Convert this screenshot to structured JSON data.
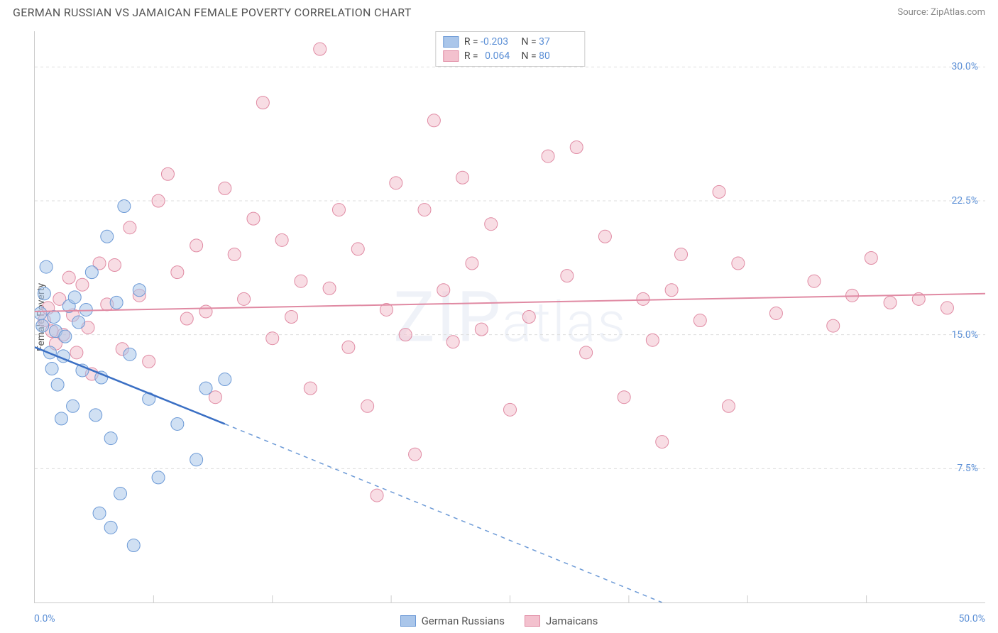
{
  "header": {
    "title": "GERMAN RUSSIAN VS JAMAICAN FEMALE POVERTY CORRELATION CHART",
    "source": "Source: ZipAtlas.com"
  },
  "chart": {
    "type": "scatter",
    "ylabel": "Female Poverty",
    "watermark": "ZIPatlas",
    "xlim": [
      0,
      50
    ],
    "ylim": [
      0,
      32
    ],
    "x_tick_labels": [
      "0.0%",
      "50.0%"
    ],
    "y_ticks": [
      {
        "v": 7.5,
        "label": "7.5%"
      },
      {
        "v": 15.0,
        "label": "15.0%"
      },
      {
        "v": 22.5,
        "label": "22.5%"
      },
      {
        "v": 30.0,
        "label": "30.0%"
      }
    ],
    "x_tick_count": 8,
    "background_color": "#ffffff",
    "grid_color": "#dddddd",
    "marker_radius": 9,
    "marker_opacity": 0.55,
    "trend_line_width": 2,
    "series": [
      {
        "id": "german_russians",
        "label": "German Russians",
        "color_fill": "#aac6ea",
        "color_stroke": "#6b99d6",
        "R": "-0.203",
        "N": "37",
        "trend": {
          "x1": 0,
          "y1": 14.3,
          "x2": 10,
          "y2": 10.0,
          "extrap_x2": 33,
          "extrap_y2": 0
        },
        "points": [
          [
            0.3,
            16.2
          ],
          [
            0.4,
            15.5
          ],
          [
            0.5,
            17.3
          ],
          [
            0.6,
            18.8
          ],
          [
            0.8,
            14.0
          ],
          [
            0.9,
            13.1
          ],
          [
            1.0,
            16.0
          ],
          [
            1.1,
            15.2
          ],
          [
            1.2,
            12.2
          ],
          [
            1.4,
            10.3
          ],
          [
            1.5,
            13.8
          ],
          [
            1.6,
            14.9
          ],
          [
            1.8,
            16.6
          ],
          [
            2.0,
            11.0
          ],
          [
            2.1,
            17.1
          ],
          [
            2.3,
            15.7
          ],
          [
            2.5,
            13.0
          ],
          [
            2.7,
            16.4
          ],
          [
            3.0,
            18.5
          ],
          [
            3.2,
            10.5
          ],
          [
            3.5,
            12.6
          ],
          [
            3.8,
            20.5
          ],
          [
            4.0,
            9.2
          ],
          [
            4.3,
            16.8
          ],
          [
            4.7,
            22.2
          ],
          [
            5.0,
            13.9
          ],
          [
            5.5,
            17.5
          ],
          [
            6.0,
            11.4
          ],
          [
            6.5,
            7.0
          ],
          [
            4.0,
            4.2
          ],
          [
            5.2,
            3.2
          ],
          [
            3.4,
            5.0
          ],
          [
            4.5,
            6.1
          ],
          [
            8.5,
            8.0
          ],
          [
            9.0,
            12.0
          ],
          [
            10.0,
            12.5
          ],
          [
            7.5,
            10.0
          ]
        ]
      },
      {
        "id": "jamaicans",
        "label": "Jamaicans",
        "color_fill": "#f3c1ce",
        "color_stroke": "#e08aa3",
        "R": "0.064",
        "N": "80",
        "trend": {
          "x1": 0,
          "y1": 16.3,
          "x2": 50,
          "y2": 17.3
        },
        "points": [
          [
            0.5,
            15.8
          ],
          [
            0.7,
            16.5
          ],
          [
            0.9,
            15.2
          ],
          [
            1.1,
            14.5
          ],
          [
            1.3,
            17.0
          ],
          [
            1.5,
            15.0
          ],
          [
            1.8,
            18.2
          ],
          [
            2.0,
            16.1
          ],
          [
            2.2,
            14.0
          ],
          [
            2.5,
            17.8
          ],
          [
            2.8,
            15.4
          ],
          [
            3.0,
            12.8
          ],
          [
            3.4,
            19.0
          ],
          [
            3.8,
            16.7
          ],
          [
            4.2,
            18.9
          ],
          [
            4.6,
            14.2
          ],
          [
            5.0,
            21.0
          ],
          [
            5.5,
            17.2
          ],
          [
            6.0,
            13.5
          ],
          [
            6.5,
            22.5
          ],
          [
            7.0,
            24.0
          ],
          [
            7.5,
            18.5
          ],
          [
            8.0,
            15.9
          ],
          [
            8.5,
            20.0
          ],
          [
            9.0,
            16.3
          ],
          [
            9.5,
            11.5
          ],
          [
            10.0,
            23.2
          ],
          [
            10.5,
            19.5
          ],
          [
            11.0,
            17.0
          ],
          [
            11.5,
            21.5
          ],
          [
            12.0,
            28.0
          ],
          [
            12.5,
            14.8
          ],
          [
            13.0,
            20.3
          ],
          [
            13.5,
            16.0
          ],
          [
            14.0,
            18.0
          ],
          [
            14.5,
            12.0
          ],
          [
            15.0,
            31.0
          ],
          [
            15.5,
            17.6
          ],
          [
            16.0,
            22.0
          ],
          [
            16.5,
            14.3
          ],
          [
            17.0,
            19.8
          ],
          [
            17.5,
            11.0
          ],
          [
            18.0,
            6.0
          ],
          [
            18.5,
            16.4
          ],
          [
            19.0,
            23.5
          ],
          [
            19.5,
            15.0
          ],
          [
            20.0,
            8.3
          ],
          [
            20.5,
            22.0
          ],
          [
            21.0,
            27.0
          ],
          [
            21.5,
            17.5
          ],
          [
            22.0,
            14.6
          ],
          [
            22.5,
            23.8
          ],
          [
            23.0,
            19.0
          ],
          [
            23.5,
            15.3
          ],
          [
            24.0,
            21.2
          ],
          [
            25.0,
            10.8
          ],
          [
            26.0,
            16.0
          ],
          [
            27.0,
            25.0
          ],
          [
            28.0,
            18.3
          ],
          [
            29.0,
            14.0
          ],
          [
            30.0,
            20.5
          ],
          [
            31.0,
            11.5
          ],
          [
            32.0,
            17.0
          ],
          [
            33.0,
            9.0
          ],
          [
            34.0,
            19.5
          ],
          [
            35.0,
            15.8
          ],
          [
            36.0,
            23.0
          ],
          [
            28.5,
            25.5
          ],
          [
            37.0,
            19.0
          ],
          [
            33.5,
            17.5
          ],
          [
            39.0,
            16.2
          ],
          [
            36.5,
            11.0
          ],
          [
            41.0,
            18.0
          ],
          [
            42.0,
            15.5
          ],
          [
            43.0,
            17.2
          ],
          [
            44.0,
            19.3
          ],
          [
            45.0,
            16.8
          ],
          [
            46.5,
            17.0
          ],
          [
            48.0,
            16.5
          ],
          [
            32.5,
            14.7
          ]
        ]
      }
    ]
  }
}
